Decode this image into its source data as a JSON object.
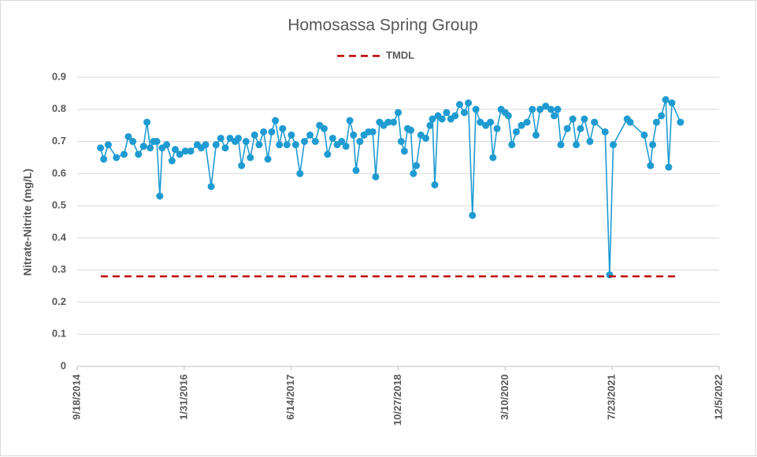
{
  "chart_data": {
    "type": "line",
    "title": "Homosassa Spring Group",
    "ylabel": "Nitrate-Nitrite (mg/L)",
    "xlim": [
      "9/18/2014",
      "12/5/2022"
    ],
    "xticks": [
      "9/18/2014",
      "1/31/2016",
      "6/14/2017",
      "10/27/2018",
      "3/10/2020",
      "7/23/2021",
      "12/5/2022"
    ],
    "ylim": [
      0,
      0.9
    ],
    "yticks": [
      0,
      0.1,
      0.2,
      0.3,
      0.4,
      0.5,
      0.6,
      0.7,
      0.8,
      0.9
    ],
    "grid": true,
    "legend": "top",
    "series": [
      {
        "color": "#1f9bd1",
        "markers": true,
        "x": [
          "1/5/2015",
          "1/20/2015",
          "2/10/2015",
          "3/20/2015",
          "4/25/2015",
          "5/15/2015",
          "6/5/2015",
          "7/1/2015",
          "7/25/2015",
          "8/10/2015",
          "8/25/2015",
          "9/10/2015",
          "9/25/2015",
          "10/9/2015",
          "10/20/2015",
          "11/10/2015",
          "12/5/2015",
          "12/20/2015",
          "1/10/2016",
          "2/5/2016",
          "3/1/2016",
          "4/1/2016",
          "4/20/2016",
          "5/10/2016",
          "6/5/2016",
          "6/28/2016",
          "7/20/2016",
          "8/10/2016",
          "9/1/2016",
          "9/25/2016",
          "10/10/2016",
          "10/25/2016",
          "11/15/2016",
          "12/5/2016",
          "12/25/2016",
          "1/15/2017",
          "2/5/2017",
          "2/25/2017",
          "3/15/2017",
          "4/1/2017",
          "4/20/2017",
          "5/5/2017",
          "5/25/2017",
          "6/15/2017",
          "7/5/2017",
          "7/25/2017",
          "8/15/2017",
          "9/10/2017",
          "10/5/2017",
          "10/25/2017",
          "11/15/2017",
          "12/1/2017",
          "12/25/2017",
          "1/15/2018",
          "2/5/2018",
          "2/25/2018",
          "3/15/2018",
          "4/1/2018",
          "4/13/2018",
          "5/1/2018",
          "5/20/2018",
          "6/10/2018",
          "6/30/2018",
          "7/14/2018",
          "8/1/2018",
          "8/20/2018",
          "9/10/2018",
          "10/5/2018",
          "10/27/2018",
          "11/10/2018",
          "11/25/2018",
          "12/10/2018",
          "12/25/2018",
          "1/6/2019",
          "1/20/2019",
          "2/10/2019",
          "3/5/2019",
          "3/25/2019",
          "4/5/2019",
          "4/16/2019",
          "5/1/2019",
          "5/20/2019",
          "6/10/2019",
          "6/30/2019",
          "7/20/2019",
          "8/10/2019",
          "9/1/2019",
          "9/20/2019",
          "10/9/2019",
          "10/25/2019",
          "11/15/2019",
          "12/10/2019",
          "1/1/2020",
          "1/13/2020",
          "2/1/2020",
          "2/20/2020",
          "3/10/2020",
          "3/25/2020",
          "4/10/2020",
          "5/1/2020",
          "5/25/2020",
          "6/20/2020",
          "7/15/2020",
          "8/1/2020",
          "8/20/2020",
          "9/15/2020",
          "10/10/2020",
          "10/25/2020",
          "11/10/2020",
          "11/25/2020",
          "12/25/2020",
          "1/20/2021",
          "2/5/2021",
          "2/25/2021",
          "3/15/2021",
          "4/10/2021",
          "5/1/2021",
          "6/20/2021",
          "7/11/2021",
          "7/28/2021",
          "10/1/2021",
          "10/15/2021",
          "12/20/2021",
          "1/18/2022",
          "1/28/2022",
          "2/15/2022",
          "3/10/2022",
          "3/30/2022",
          "4/13/2022",
          "4/28/2022",
          "6/7/2022"
        ],
        "values": [
          0.68,
          0.645,
          0.69,
          0.65,
          0.66,
          0.715,
          0.7,
          0.66,
          0.685,
          0.76,
          0.68,
          0.7,
          0.7,
          0.53,
          0.68,
          0.69,
          0.64,
          0.675,
          0.66,
          0.67,
          0.67,
          0.69,
          0.68,
          0.69,
          0.56,
          0.69,
          0.71,
          0.68,
          0.71,
          0.7,
          0.71,
          0.625,
          0.7,
          0.65,
          0.72,
          0.69,
          0.73,
          0.645,
          0.73,
          0.765,
          0.69,
          0.74,
          0.69,
          0.72,
          0.69,
          0.6,
          0.7,
          0.72,
          0.7,
          0.75,
          0.74,
          0.66,
          0.71,
          0.69,
          0.7,
          0.685,
          0.765,
          0.72,
          0.61,
          0.7,
          0.72,
          0.73,
          0.73,
          0.59,
          0.76,
          0.75,
          0.76,
          0.76,
          0.79,
          0.7,
          0.67,
          0.74,
          0.735,
          0.6,
          0.625,
          0.72,
          0.71,
          0.75,
          0.77,
          0.565,
          0.78,
          0.77,
          0.79,
          0.77,
          0.78,
          0.815,
          0.79,
          0.82,
          0.47,
          0.8,
          0.76,
          0.75,
          0.76,
          0.65,
          0.74,
          0.8,
          0.79,
          0.78,
          0.69,
          0.73,
          0.75,
          0.76,
          0.8,
          0.72,
          0.8,
          0.81,
          0.8,
          0.78,
          0.8,
          0.69,
          0.74,
          0.77,
          0.69,
          0.74,
          0.77,
          0.7,
          0.76,
          0.73,
          0.285,
          0.69,
          0.77,
          0.76,
          0.72,
          0.625,
          0.69,
          0.76,
          0.78,
          0.83,
          0.62,
          0.82,
          0.76
        ]
      },
      {
        "name": "TMDL",
        "color": "#c00000",
        "dashed": true,
        "x": [
          "1/6/2015",
          "5/16/2022"
        ],
        "values": [
          0.28,
          0.28
        ]
      }
    ]
  }
}
